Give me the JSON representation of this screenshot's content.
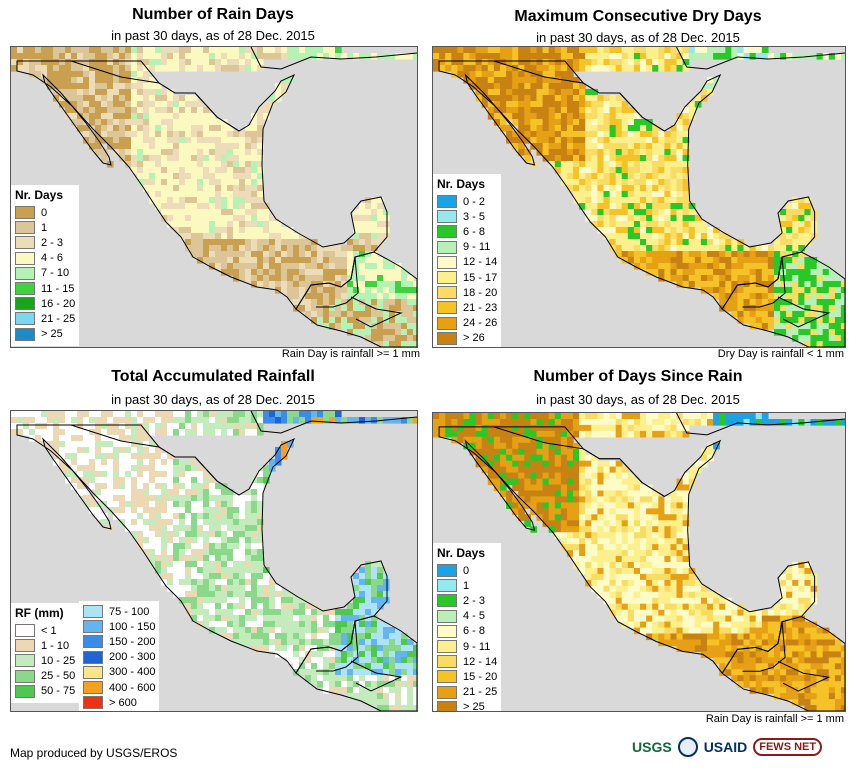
{
  "panels": [
    {
      "title": "Number of Rain Days",
      "subtitle": "in past 30 days, as of 28 Dec. 2015",
      "note": "Rain Day is rainfall >= 1 mm",
      "legend_title": "Nr. Days",
      "scheme": "raindays",
      "legend": [
        {
          "label": "0",
          "color": "#c8a050"
        },
        {
          "label": "1",
          "color": "#dcc596"
        },
        {
          "label": "2 - 3",
          "color": "#eddcb8"
        },
        {
          "label": "4 - 6",
          "color": "#fbf8c0"
        },
        {
          "label": "7 - 10",
          "color": "#b4f3b4"
        },
        {
          "label": "11 - 15",
          "color": "#3ed23e"
        },
        {
          "label": "16 - 20",
          "color": "#19a519"
        },
        {
          "label": "21 - 25",
          "color": "#79d7f3"
        },
        {
          "label": "> 25",
          "color": "#1a8ccc"
        }
      ]
    },
    {
      "title": "Maximum Consecutive Dry Days",
      "subtitle": "in past 30 days, as of 28 Dec. 2015",
      "note": "Dry Day is rainfall < 1 mm",
      "legend_title": "Nr. Days",
      "scheme": "drydays",
      "legend": [
        {
          "label": "0 - 2",
          "color": "#1ca3e6"
        },
        {
          "label": "3 - 5",
          "color": "#96e8f0"
        },
        {
          "label": "6 - 8",
          "color": "#28c828"
        },
        {
          "label": "9 - 11",
          "color": "#b8f0b8"
        },
        {
          "label": "12 - 14",
          "color": "#fdfbc8"
        },
        {
          "label": "15 - 17",
          "color": "#fbf08c"
        },
        {
          "label": "18 - 20",
          "color": "#f8dc64"
        },
        {
          "label": "21 - 23",
          "color": "#f5c328"
        },
        {
          "label": "24 - 26",
          "color": "#e6a014"
        },
        {
          "label": "> 26",
          "color": "#c88214"
        }
      ]
    },
    {
      "title": "Total Accumulated Rainfall",
      "subtitle": "in past 30 days, as of 28 Dec. 2015",
      "note": "",
      "legend_title": "RF (mm)",
      "scheme": "rainfall",
      "legend": [
        {
          "label": "< 1",
          "color": "#ffffff"
        },
        {
          "label": "1 - 10",
          "color": "#ecd9b4"
        },
        {
          "label": "10 - 25",
          "color": "#c4ebbc"
        },
        {
          "label": "25 - 50",
          "color": "#8ad98a"
        },
        {
          "label": "50 - 75",
          "color": "#4ec84e"
        }
      ],
      "legend2": [
        {
          "label": "75 - 100",
          "color": "#aee3f5"
        },
        {
          "label": "100 - 150",
          "color": "#64b4f0"
        },
        {
          "label": "150 - 200",
          "color": "#3c8ce6"
        },
        {
          "label": "200 - 300",
          "color": "#1e64d2"
        },
        {
          "label": "300 - 400",
          "color": "#fbe68c"
        },
        {
          "label": "400 - 600",
          "color": "#f5a01e"
        },
        {
          "label": "> 600",
          "color": "#f03214"
        }
      ]
    },
    {
      "title": "Number of Days Since Rain",
      "subtitle": "in past 30 days, as of 28 Dec. 2015",
      "note": "Rain Day is rainfall >= 1 mm",
      "legend_title": "Nr. Days",
      "scheme": "sincerain",
      "legend": [
        {
          "label": "0",
          "color": "#1ca3e6"
        },
        {
          "label": "1",
          "color": "#96e8f0"
        },
        {
          "label": "2 - 3",
          "color": "#28c828"
        },
        {
          "label": "4 - 5",
          "color": "#b8f0b8"
        },
        {
          "label": "6 - 8",
          "color": "#fdfbc8"
        },
        {
          "label": "9 - 11",
          "color": "#fbf08c"
        },
        {
          "label": "12 - 14",
          "color": "#f8dc64"
        },
        {
          "label": "15 - 20",
          "color": "#f5c328"
        },
        {
          "label": "21 - 25",
          "color": "#e6a014"
        },
        {
          "label": "> 25",
          "color": "#c88214"
        }
      ]
    }
  ],
  "footer": {
    "credit": "Map produced by USGS/EROS",
    "logos": [
      "USGS",
      "USAID",
      "FEWS NET"
    ]
  },
  "map_colors": {
    "water": "#d9d9d9",
    "border": "#000000"
  }
}
